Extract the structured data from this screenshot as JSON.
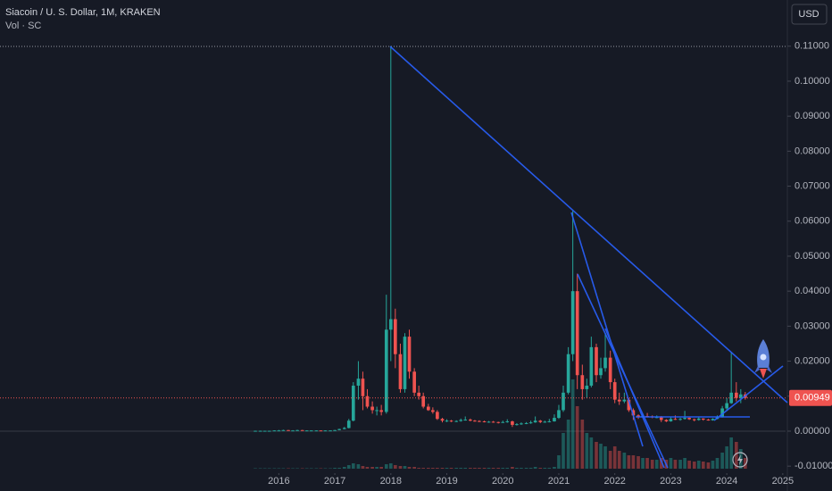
{
  "chart_data": {
    "type": "candlestick",
    "title": "Siacoin / U. S. Dollar, 1M, KRAKEN",
    "subtitle": "Vol · SC",
    "currency": "USD",
    "up_color": "#26a69a",
    "down_color": "#ef5350",
    "last_price": 0.00949,
    "xlim": [
      2011.02,
      2025.05
    ],
    "xticks": [
      2016,
      2017,
      2018,
      2019,
      2020,
      2021,
      2022,
      2023,
      2024,
      2025
    ],
    "ylim": [
      -0.012,
      0.1232
    ],
    "yticks": [
      {
        "value": -0.01,
        "label": "-0.01000"
      },
      {
        "value": 0,
        "label": "0.00000"
      },
      {
        "value": 0.01,
        "label": "0.01000"
      },
      {
        "value": 0.02,
        "label": "0.02000"
      },
      {
        "value": 0.03,
        "label": "0.03000"
      },
      {
        "value": 0.04,
        "label": "0.04000"
      },
      {
        "value": 0.05,
        "label": "0.05000"
      },
      {
        "value": 0.06,
        "label": "0.06000"
      },
      {
        "value": 0.07,
        "label": "0.07000"
      },
      {
        "value": 0.08,
        "label": "0.08000"
      },
      {
        "value": 0.09,
        "label": "0.09000"
      },
      {
        "value": 0.1,
        "label": "0.10000"
      },
      {
        "value": 0.11,
        "label": "0.11000"
      }
    ],
    "x": [
      2015.58,
      2015.67,
      2015.75,
      2015.83,
      2015.92,
      2016.0,
      2016.08,
      2016.17,
      2016.25,
      2016.33,
      2016.42,
      2016.5,
      2016.58,
      2016.67,
      2016.75,
      2016.83,
      2016.92,
      2017.0,
      2017.08,
      2017.17,
      2017.25,
      2017.33,
      2017.42,
      2017.5,
      2017.58,
      2017.67,
      2017.75,
      2017.83,
      2017.92,
      2018.0,
      2018.08,
      2018.17,
      2018.25,
      2018.33,
      2018.42,
      2018.5,
      2018.58,
      2018.67,
      2018.75,
      2018.83,
      2018.92,
      2019.0,
      2019.08,
      2019.17,
      2019.25,
      2019.33,
      2019.42,
      2019.5,
      2019.58,
      2019.67,
      2019.75,
      2019.83,
      2019.92,
      2020.0,
      2020.08,
      2020.17,
      2020.25,
      2020.33,
      2020.42,
      2020.5,
      2020.58,
      2020.67,
      2020.75,
      2020.83,
      2020.92,
      2021.0,
      2021.08,
      2021.17,
      2021.25,
      2021.33,
      2021.42,
      2021.5,
      2021.58,
      2021.67,
      2021.75,
      2021.83,
      2021.92,
      2022.0,
      2022.08,
      2022.17,
      2022.25,
      2022.33,
      2022.42,
      2022.5,
      2022.58,
      2022.67,
      2022.75,
      2022.83,
      2022.92,
      2023.0,
      2023.08,
      2023.17,
      2023.25,
      2023.33,
      2023.42,
      2023.5,
      2023.58,
      2023.67,
      2023.75,
      2023.83,
      2023.92,
      2024.0,
      2024.08,
      2024.17,
      2024.25,
      2024.33
    ],
    "ohlc": [
      [
        0.0001,
        0.00015,
        8e-05,
        0.0001
      ],
      [
        0.0001,
        0.00015,
        8e-05,
        0.0001
      ],
      [
        0.0001,
        0.00013,
        8e-05,
        0.0001
      ],
      [
        0.0001,
        0.00014,
        9e-05,
        0.0001
      ],
      [
        0.0001,
        0.00025,
        0.0001,
        0.0002
      ],
      [
        0.0002,
        0.00035,
        0.00015,
        0.0002
      ],
      [
        0.0002,
        0.0004,
        0.00018,
        0.0003
      ],
      [
        0.0003,
        0.00035,
        0.0002,
        0.0002
      ],
      [
        0.0002,
        0.00028,
        0.00018,
        0.0002
      ],
      [
        0.0002,
        0.0004,
        0.00018,
        0.0003
      ],
      [
        0.0003,
        0.00035,
        0.0002,
        0.0002
      ],
      [
        0.0002,
        0.00025,
        0.00015,
        0.0002
      ],
      [
        0.0002,
        0.00025,
        0.00017,
        0.0002
      ],
      [
        0.0002,
        0.00024,
        0.00016,
        0.0002
      ],
      [
        0.0002,
        0.00022,
        0.0001,
        0.0001
      ],
      [
        0.0001,
        0.00022,
        0.0001,
        0.0002
      ],
      [
        0.0002,
        0.00024,
        0.00015,
        0.0002
      ],
      [
        0.0002,
        0.00035,
        0.00018,
        0.0003
      ],
      [
        0.0003,
        0.0007,
        0.00025,
        0.0006
      ],
      [
        0.0006,
        0.0012,
        0.0005,
        0.0009
      ],
      [
        0.0009,
        0.0035,
        0.0008,
        0.003
      ],
      [
        0.003,
        0.014,
        0.0028,
        0.013
      ],
      [
        0.013,
        0.02,
        0.009,
        0.015
      ],
      [
        0.015,
        0.017,
        0.006,
        0.01
      ],
      [
        0.01,
        0.012,
        0.0065,
        0.007
      ],
      [
        0.007,
        0.0085,
        0.005,
        0.006
      ],
      [
        0.006,
        0.007,
        0.0045,
        0.006
      ],
      [
        0.006,
        0.0075,
        0.0045,
        0.0055
      ],
      [
        0.0055,
        0.039,
        0.005,
        0.029
      ],
      [
        0.029,
        0.11,
        0.02,
        0.032
      ],
      [
        0.032,
        0.035,
        0.018,
        0.022
      ],
      [
        0.022,
        0.025,
        0.011,
        0.012
      ],
      [
        0.012,
        0.028,
        0.011,
        0.027
      ],
      [
        0.027,
        0.029,
        0.015,
        0.017
      ],
      [
        0.017,
        0.018,
        0.01,
        0.011
      ],
      [
        0.011,
        0.013,
        0.009,
        0.01
      ],
      [
        0.01,
        0.011,
        0.0065,
        0.007
      ],
      [
        0.007,
        0.0078,
        0.0058,
        0.006
      ],
      [
        0.006,
        0.0068,
        0.005,
        0.0055
      ],
      [
        0.0055,
        0.006,
        0.0032,
        0.0035
      ],
      [
        0.0035,
        0.0038,
        0.0025,
        0.003
      ],
      [
        0.003,
        0.0034,
        0.0026,
        0.003
      ],
      [
        0.003,
        0.0032,
        0.0026,
        0.0028
      ],
      [
        0.0028,
        0.0031,
        0.0026,
        0.0029
      ],
      [
        0.0029,
        0.0036,
        0.0027,
        0.0032
      ],
      [
        0.0032,
        0.0042,
        0.003,
        0.0033
      ],
      [
        0.0033,
        0.0036,
        0.0028,
        0.003
      ],
      [
        0.003,
        0.0032,
        0.0027,
        0.0029
      ],
      [
        0.0029,
        0.0031,
        0.0026,
        0.0028
      ],
      [
        0.0028,
        0.003,
        0.0025,
        0.0027
      ],
      [
        0.0027,
        0.0029,
        0.0024,
        0.0027
      ],
      [
        0.0027,
        0.0029,
        0.0024,
        0.0026
      ],
      [
        0.0026,
        0.0027,
        0.0022,
        0.0025
      ],
      [
        0.0025,
        0.003,
        0.0024,
        0.0026
      ],
      [
        0.0026,
        0.0034,
        0.0024,
        0.0028
      ],
      [
        0.0028,
        0.003,
        0.0012,
        0.0018
      ],
      [
        0.0018,
        0.0023,
        0.0016,
        0.002
      ],
      [
        0.002,
        0.0025,
        0.0018,
        0.0022
      ],
      [
        0.0022,
        0.0026,
        0.002,
        0.0023
      ],
      [
        0.0023,
        0.003,
        0.0021,
        0.0025
      ],
      [
        0.0025,
        0.0042,
        0.0024,
        0.003
      ],
      [
        0.003,
        0.0032,
        0.0023,
        0.0026
      ],
      [
        0.0026,
        0.003,
        0.0024,
        0.0027
      ],
      [
        0.0027,
        0.0035,
        0.0025,
        0.0028
      ],
      [
        0.0028,
        0.0048,
        0.0027,
        0.0038
      ],
      [
        0.0038,
        0.0075,
        0.0035,
        0.006
      ],
      [
        0.006,
        0.013,
        0.0055,
        0.011
      ],
      [
        0.011,
        0.024,
        0.0105,
        0.022
      ],
      [
        0.022,
        0.063,
        0.02,
        0.04
      ],
      [
        0.04,
        0.045,
        0.012,
        0.016
      ],
      [
        0.016,
        0.019,
        0.009,
        0.012
      ],
      [
        0.012,
        0.015,
        0.0095,
        0.013
      ],
      [
        0.013,
        0.027,
        0.0125,
        0.024
      ],
      [
        0.024,
        0.025,
        0.014,
        0.016
      ],
      [
        0.016,
        0.021,
        0.015,
        0.018
      ],
      [
        0.018,
        0.028,
        0.017,
        0.021
      ],
      [
        0.021,
        0.023,
        0.012,
        0.014
      ],
      [
        0.014,
        0.015,
        0.008,
        0.009
      ],
      [
        0.009,
        0.011,
        0.0075,
        0.0085
      ],
      [
        0.0085,
        0.011,
        0.008,
        0.009
      ],
      [
        0.009,
        0.0095,
        0.0055,
        0.006
      ],
      [
        0.006,
        0.0065,
        0.0032,
        0.0045
      ],
      [
        0.0045,
        0.0048,
        0.0035,
        0.004
      ],
      [
        0.004,
        0.005,
        0.0038,
        0.0043
      ],
      [
        0.0043,
        0.0052,
        0.004,
        0.0042
      ],
      [
        0.0042,
        0.0045,
        0.0037,
        0.004
      ],
      [
        0.004,
        0.0045,
        0.0037,
        0.004
      ],
      [
        0.004,
        0.0043,
        0.0026,
        0.0032
      ],
      [
        0.0032,
        0.0034,
        0.0026,
        0.0028
      ],
      [
        0.0028,
        0.004,
        0.0027,
        0.0035
      ],
      [
        0.0035,
        0.0045,
        0.0032,
        0.0034
      ],
      [
        0.0034,
        0.0038,
        0.003,
        0.0035
      ],
      [
        0.0035,
        0.0058,
        0.0033,
        0.0038
      ],
      [
        0.0038,
        0.0039,
        0.0032,
        0.0034
      ],
      [
        0.0034,
        0.0036,
        0.0028,
        0.0032
      ],
      [
        0.0032,
        0.004,
        0.003,
        0.0036
      ],
      [
        0.0036,
        0.0037,
        0.003,
        0.0033
      ],
      [
        0.0033,
        0.0035,
        0.003,
        0.0031
      ],
      [
        0.0031,
        0.0037,
        0.003,
        0.0035
      ],
      [
        0.0035,
        0.0045,
        0.0034,
        0.004
      ],
      [
        0.004,
        0.0072,
        0.0039,
        0.0065
      ],
      [
        0.0065,
        0.0095,
        0.0058,
        0.008
      ],
      [
        0.008,
        0.0225,
        0.0078,
        0.011
      ],
      [
        0.011,
        0.014,
        0.0085,
        0.0095
      ],
      [
        0.0095,
        0.012,
        0.008,
        0.0105
      ],
      [
        0.0105,
        0.0112,
        0.009,
        0.00949
      ]
    ],
    "volume": [
      0.5,
      0.5,
      0.5,
      0.5,
      0.5,
      0.5,
      0.5,
      0.5,
      0.5,
      0.5,
      0.5,
      0.5,
      0.5,
      0.5,
      0.5,
      0.5,
      0.5,
      1,
      1,
      2,
      4,
      6,
      5,
      3,
      2,
      2,
      2,
      2,
      5,
      6,
      4,
      3,
      3,
      2,
      2,
      1,
      1,
      1,
      1,
      1,
      1,
      1,
      1,
      1,
      1,
      1,
      1,
      1,
      1,
      1,
      1,
      1,
      1,
      1,
      1,
      2,
      1,
      1,
      1,
      1,
      2,
      1,
      1,
      1,
      2,
      15,
      40,
      55,
      100,
      70,
      55,
      40,
      35,
      30,
      28,
      25,
      20,
      25,
      20,
      18,
      15,
      15,
      14,
      12,
      12,
      10,
      10,
      12,
      10,
      12,
      10,
      10,
      12,
      9,
      8,
      9,
      8,
      7,
      9,
      12,
      18,
      25,
      35,
      30,
      22,
      12
    ]
  }
}
